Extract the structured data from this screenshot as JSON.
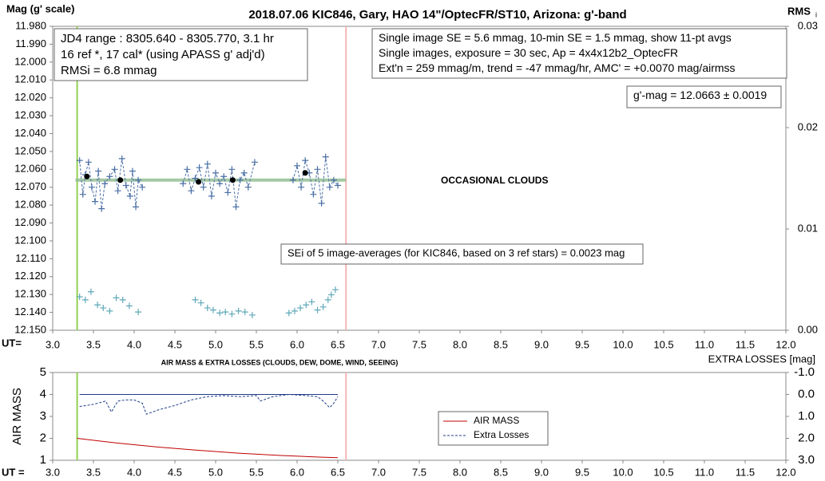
{
  "chart_data": [
    {
      "type": "scatter",
      "title": "2018.07.06  KIC846,  Gary, HAO 14\"/OptecFR/ST10,  Arizona:  g'-band",
      "y_label": "Mag (g' scale)",
      "y2_label": "RMS",
      "y2_label_sub": "i",
      "x_label": "UT=",
      "xlim": [
        3,
        12
      ],
      "xticks": [
        {
          "value": 3,
          "label": "3.0"
        },
        3.5,
        {
          "value": 4,
          "label": "4.0"
        },
        4.5,
        {
          "value": 5,
          "label": "5.0"
        },
        5.5,
        {
          "value": 6,
          "label": "6.0"
        },
        6.5,
        {
          "value": 7,
          "label": "7.0"
        },
        7.5,
        {
          "value": 8,
          "label": "8.0"
        },
        8.5,
        {
          "value": 9,
          "label": "9.0"
        },
        9.5,
        {
          "value": 10,
          "label": "10.0"
        },
        10.5,
        {
          "value": 11,
          "label": "11.0"
        },
        11.5,
        {
          "value": 12,
          "label": "12.0"
        }
      ],
      "ylim": [
        11.98,
        12.15
      ],
      "y_inverted": true,
      "yticks": [
        {
          "value": 11.98,
          "label": "11.980"
        },
        {
          "value": 11.99,
          "label": "11.990"
        },
        {
          "value": 12.0,
          "label": "12.000"
        },
        {
          "value": 12.01,
          "label": "12.010"
        },
        {
          "value": 12.02,
          "label": "12.020"
        },
        {
          "value": 12.03,
          "label": "12.030"
        },
        {
          "value": 12.04,
          "label": "12.040"
        },
        {
          "value": 12.05,
          "label": "12.050"
        },
        {
          "value": 12.06,
          "label": "12.060"
        },
        {
          "value": 12.07,
          "label": "12.070"
        },
        {
          "value": 12.08,
          "label": "12.080"
        },
        {
          "value": 12.09,
          "label": "12.090"
        },
        {
          "value": 12.1,
          "label": "12.100"
        },
        {
          "value": 12.11,
          "label": "12.110"
        },
        {
          "value": 12.12,
          "label": "12.120"
        },
        {
          "value": 12.13,
          "label": "12.130"
        },
        {
          "value": 12.14,
          "label": "12.140"
        },
        {
          "value": 12.15,
          "label": "12.150"
        }
      ],
      "y2lim": [
        0,
        0.03
      ],
      "y2ticks": [
        {
          "value": 0,
          "label": "0.00"
        },
        0.01,
        0.02,
        0.03
      ],
      "vlines": [
        {
          "x": 3.3,
          "color": "#92d050"
        },
        {
          "x": 6.6,
          "color": "#f4b6b6"
        }
      ],
      "annotations": [
        [
          "JD4 range : 8305.640 - 8305.770,  3.1  hr",
          "16 ref *, 17 cal* (using APASS g' adj'd)",
          "RMSi = 6.8 mmag"
        ],
        [
          "Single image SE = 5.6 mmag, 10-min SE = 1.5 mmag, show  11-pt avgs",
          "Single images, exposure = 30 sec, Ap = 4x4x12b2_OptecFR",
          "Ext'n = 259 mmag/m, trend =  -47 mmag/hr, AMC' = +0.0070 mag/airmss"
        ],
        [
          "g'-mag = 12.0663 ± 0.0019"
        ],
        [
          "OCCASIONAL CLOUDS"
        ],
        [
          "SEi of 5 image-averages (for KIC846, based on 3 ref stars) = 0.0023  mag"
        ]
      ],
      "series": [
        {
          "color": "#8fbc8f",
          "line": "solid",
          "line_width": 4,
          "marker": "none",
          "x": [
            3.28,
            6.6
          ],
          "values": [
            12.066,
            12.066
          ]
        },
        {
          "color": "#4a6fa5",
          "line": "dashed",
          "marker": "plus",
          "x": [
            3.33,
            3.37,
            3.4,
            3.44,
            3.48,
            3.52,
            3.56,
            3.6,
            3.64,
            3.7,
            3.76,
            3.8,
            3.85,
            3.9,
            3.95,
            3.98,
            4.02,
            4.05,
            4.1,
            4.35,
            4.6,
            4.65,
            4.7,
            4.75,
            4.8,
            4.85,
            4.9,
            4.95,
            5.0,
            5.05,
            5.1,
            5.15,
            5.2,
            5.25,
            5.3,
            5.35,
            5.4,
            5.48,
            5.7,
            5.95,
            6.0,
            6.05,
            6.1,
            6.15,
            6.2,
            6.25,
            6.3,
            6.35,
            6.4,
            6.45,
            6.5
          ],
          "values": [
            12.055,
            12.074,
            12.063,
            12.056,
            12.07,
            12.078,
            12.061,
            12.082,
            12.068,
            12.064,
            12.06,
            12.072,
            12.054,
            12.069,
            12.075,
            12.061,
            12.081,
            12.066,
            12.07,
            null,
            12.068,
            12.06,
            12.072,
            12.065,
            12.059,
            12.07,
            12.057,
            12.075,
            12.062,
            12.068,
            12.064,
            12.073,
            12.06,
            12.081,
            12.066,
            12.062,
            12.07,
            12.056,
            null,
            12.066,
            12.058,
            12.07,
            12.055,
            12.062,
            12.074,
            12.06,
            12.079,
            12.053,
            12.07,
            12.066,
            12.069
          ]
        },
        {
          "color": "#000000",
          "line": "none",
          "marker": "dot",
          "x": [
            3.42,
            3.83,
            4.79,
            5.21,
            6.1
          ],
          "values": [
            12.064,
            12.066,
            12.067,
            12.066,
            12.062
          ]
        },
        {
          "color": "#5fa8b8",
          "line": "none",
          "marker": "plus",
          "axis": "y2",
          "x": [
            3.33,
            3.4,
            3.47,
            3.55,
            3.62,
            3.7,
            3.78,
            3.86,
            3.94,
            4.05,
            4.75,
            4.82,
            4.9,
            4.97,
            5.05,
            5.12,
            5.2,
            5.28,
            5.36,
            5.45,
            5.9,
            5.97,
            6.04,
            6.11,
            6.18,
            6.25,
            6.32,
            6.38,
            6.42,
            6.47
          ],
          "values": [
            0.0033,
            0.003,
            0.0038,
            0.0025,
            0.0022,
            0.0019,
            0.0032,
            0.003,
            0.0024,
            0.0018,
            0.003,
            0.0027,
            0.0022,
            0.002,
            0.0017,
            0.0018,
            0.0016,
            0.0019,
            0.0018,
            0.0015,
            0.0017,
            0.0019,
            0.0022,
            0.0025,
            0.0028,
            0.002,
            0.0023,
            0.003,
            0.0035,
            0.004
          ]
        }
      ]
    },
    {
      "type": "line",
      "title": "AIR MASS & EXTRA LOSSES (CLOUDS, DEW, DOME, WIND, SEEING)",
      "y_label": "AIR MASS",
      "y2_label": "EXTRA LOSSES [mag]",
      "x_label": "UT =",
      "xlim": [
        3,
        12
      ],
      "xticks": [
        {
          "value": 3,
          "label": "3.0"
        },
        3.5,
        {
          "value": 4,
          "label": "4.0"
        },
        4.5,
        {
          "value": 5,
          "label": "5.0"
        },
        5.5,
        {
          "value": 6,
          "label": "6.0"
        },
        6.5,
        {
          "value": 7,
          "label": "7.0"
        },
        7.5,
        {
          "value": 8,
          "label": "8.0"
        },
        8.5,
        {
          "value": 9,
          "label": "9.0"
        },
        9.5,
        {
          "value": 10,
          "label": "10.0"
        },
        10.5,
        {
          "value": 11,
          "label": "11.0"
        },
        11.5,
        {
          "value": 12,
          "label": "12.0"
        }
      ],
      "ylim": [
        1,
        5
      ],
      "yticks": [
        1,
        2,
        3,
        4,
        5
      ],
      "y2lim": [
        -1,
        3
      ],
      "y2_inverted": true,
      "y2ticks": [
        {
          "value": -1,
          "label": "-1.0"
        },
        {
          "value": 0,
          "label": "0.0"
        },
        {
          "value": 1,
          "label": "1.0"
        },
        {
          "value": 2,
          "label": "2.0"
        },
        {
          "value": 3,
          "label": "3.0"
        }
      ],
      "vlines": [
        {
          "x": 3.3,
          "color": "#92d050"
        },
        {
          "x": 6.6,
          "color": "#f4b6b6"
        }
      ],
      "legend": "center",
      "series": [
        {
          "name": "AIR MASS",
          "color": "#c00000",
          "line": "solid",
          "x": [
            3.3,
            3.8,
            4.3,
            4.8,
            5.3,
            5.8,
            6.3,
            6.5
          ],
          "values": [
            2.0,
            1.78,
            1.6,
            1.45,
            1.32,
            1.22,
            1.14,
            1.12
          ]
        },
        {
          "name": "Extra Losses",
          "color": "#1f3c88",
          "line": "dashed",
          "axis": "y2",
          "x": [
            3.33,
            3.5,
            3.65,
            3.72,
            3.8,
            3.9,
            4.0,
            4.1,
            4.15,
            4.3,
            4.5,
            4.7,
            4.9,
            5.1,
            5.3,
            5.5,
            5.55,
            5.7,
            5.9,
            6.1,
            6.25,
            6.32,
            6.4,
            6.45,
            6.5
          ],
          "values": [
            0.55,
            0.45,
            0.3,
            0.8,
            0.3,
            0.25,
            0.25,
            0.4,
            0.9,
            0.7,
            0.5,
            0.25,
            0.1,
            0.05,
            0.1,
            0.05,
            0.3,
            0.1,
            0.0,
            0.05,
            0.1,
            0.3,
            0.6,
            0.4,
            0.1
          ]
        },
        {
          "color": "#1f3c88",
          "line": "solid",
          "axis": "y2",
          "x": [
            3.33,
            6.5
          ],
          "values": [
            0.0,
            0.0
          ]
        }
      ]
    }
  ]
}
